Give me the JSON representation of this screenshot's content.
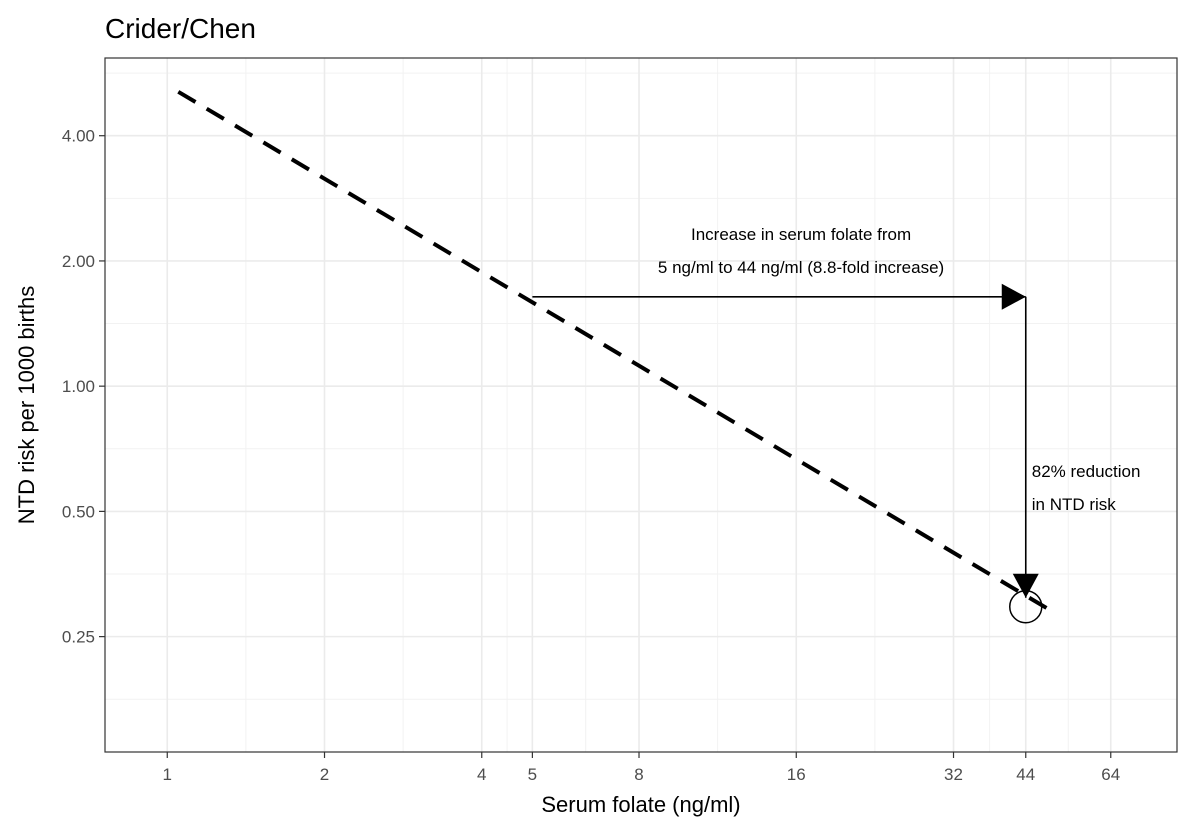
{
  "chart_data": {
    "type": "line",
    "title": "Crider/Chen",
    "xlabel": "Serum folate (ng/ml)",
    "ylabel": "NTD risk per 1000 births",
    "x_scale": "log2",
    "y_scale": "log2",
    "xlim": [
      0.76,
      85.7
    ],
    "ylim": [
      0.132,
      6.15
    ],
    "x_ticks": [
      1,
      2,
      4,
      5,
      8,
      16,
      32,
      44,
      64
    ],
    "x_tick_labels": [
      "1",
      "2",
      "4",
      "5",
      "8",
      "16",
      "32",
      "44",
      "64"
    ],
    "y_ticks": [
      0.25,
      0.5,
      1,
      2,
      4
    ],
    "y_tick_labels": [
      "0.25",
      "0.50",
      "1.00",
      "2.00",
      "4.00"
    ],
    "grid": true,
    "series": [
      {
        "style": "dashed",
        "x": [
          1.05,
          50
        ],
        "y": [
          5.1,
          0.285
        ]
      }
    ],
    "points": [
      {
        "x": 44,
        "y": 0.295,
        "marker": "open-circle"
      }
    ],
    "annotations": {
      "horizontal_arrow": {
        "x_from": 5,
        "x_to": 44,
        "y": 1.64
      },
      "vertical_arrow": {
        "x": 44,
        "y_from": 1.64,
        "y_to": 0.31
      },
      "increase_label": [
        "Increase in serum folate from",
        "5 ng/ml to 44 ng/ml (8.8-fold increase)"
      ],
      "reduction_label": [
        "82% reduction",
        "in NTD risk"
      ]
    }
  }
}
